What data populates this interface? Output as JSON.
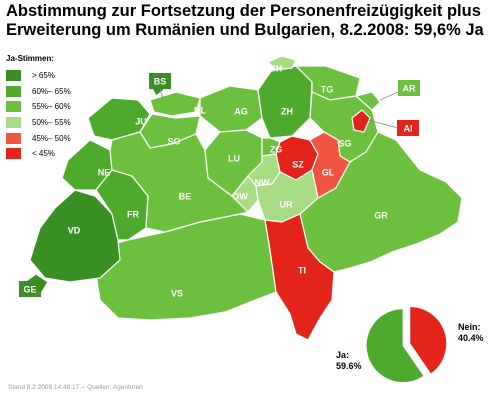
{
  "title_line1": "Abstimmung zur Fortsetzung der Personenfreizügigkeit plus",
  "title_line2": "Erweiterung um Rumänien und Bulgarien, 8.2.2008: 59,6% Ja",
  "legend": {
    "heading": "Ja-Stimmen:",
    "items": [
      {
        "label": "> 65%",
        "color": "#3a8f24"
      },
      {
        "label": "60%– 65%",
        "color": "#4eaa2c"
      },
      {
        "label": "55%– 60%",
        "color": "#6cc03e"
      },
      {
        "label": "50%– 55%",
        "color": "#a7dc84"
      },
      {
        "label": "45%– 50%",
        "color": "#f05542"
      },
      {
        "label": "< 45%",
        "color": "#e3241a"
      }
    ]
  },
  "cantons": [
    {
      "id": "BS",
      "color": "#3a8f24"
    },
    {
      "id": "BL",
      "color": "#6cc03e"
    },
    {
      "id": "JU",
      "color": "#4eaa2c"
    },
    {
      "id": "SO",
      "color": "#6cc03e"
    },
    {
      "id": "AG",
      "color": "#6cc03e"
    },
    {
      "id": "ZH",
      "color": "#4eaa2c"
    },
    {
      "id": "SH",
      "color": "#a7dc84"
    },
    {
      "id": "TG",
      "color": "#6cc03e"
    },
    {
      "id": "AR",
      "color": "#6cc03e"
    },
    {
      "id": "AI",
      "color": "#e3241a"
    },
    {
      "id": "SG",
      "color": "#6cc03e"
    },
    {
      "id": "ZG",
      "color": "#6cc03e"
    },
    {
      "id": "SZ",
      "color": "#e3241a"
    },
    {
      "id": "GL",
      "color": "#f05542"
    },
    {
      "id": "LU",
      "color": "#6cc03e"
    },
    {
      "id": "NW",
      "color": "#a7dc84"
    },
    {
      "id": "OW",
      "color": "#a7dc84"
    },
    {
      "id": "UR",
      "color": "#a7dc84"
    },
    {
      "id": "BE",
      "color": "#6cc03e"
    },
    {
      "id": "NE",
      "color": "#4eaa2c"
    },
    {
      "id": "FR",
      "color": "#4eaa2c"
    },
    {
      "id": "VD",
      "color": "#3a8f24"
    },
    {
      "id": "GE",
      "color": "#3a8f24"
    },
    {
      "id": "VS",
      "color": "#6cc03e"
    },
    {
      "id": "TI",
      "color": "#e3241a"
    },
    {
      "id": "GR",
      "color": "#6cc03e"
    }
  ],
  "pie": {
    "yes_label": "Ja:",
    "yes_value": "59.6%",
    "yes_fraction": 0.596,
    "yes_color": "#4eaa2c",
    "no_label": "Nein:",
    "no_value": "40.4%",
    "no_color": "#e3241a"
  },
  "footer": "Stand 8.2.2009 14:48:17 -- Quellen: Agenturen"
}
